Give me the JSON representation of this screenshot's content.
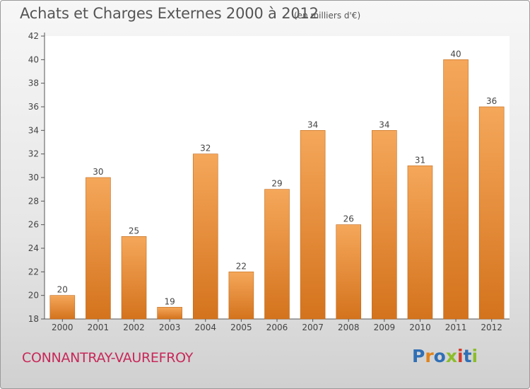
{
  "header": {
    "title": "Achats et Charges Externes 2000 à 2012",
    "subtitle": "(en milliers d'€)"
  },
  "footer": {
    "commune": "CONNANTRAY-VAUREFROY",
    "brand": {
      "text": "Proxiti",
      "letter_colors": [
        "#2f6fb5",
        "#e0821a",
        "#2f6fb5",
        "#8cbd2a",
        "#d63a2a",
        "#2f6fb5",
        "#8cbd2a"
      ]
    }
  },
  "chart_data": {
    "type": "bar",
    "title": "Achats et Charges Externes 2000 à 2012",
    "subtitle": "(en milliers d'€)",
    "categories": [
      "2000",
      "2001",
      "2002",
      "2003",
      "2004",
      "2005",
      "2006",
      "2007",
      "2008",
      "2009",
      "2010",
      "2011",
      "2012"
    ],
    "values": [
      20,
      30,
      25,
      19,
      32,
      22,
      29,
      34,
      26,
      34,
      31,
      40,
      36
    ],
    "ylim": [
      18,
      42
    ],
    "yticks": [
      18,
      20,
      22,
      24,
      26,
      28,
      30,
      32,
      34,
      36,
      38,
      40,
      42
    ],
    "grid": false,
    "colors": {
      "bar_top": "#f5a75a",
      "bar_bottom": "#d4731d",
      "bar_edge": "#c06a1c"
    }
  }
}
